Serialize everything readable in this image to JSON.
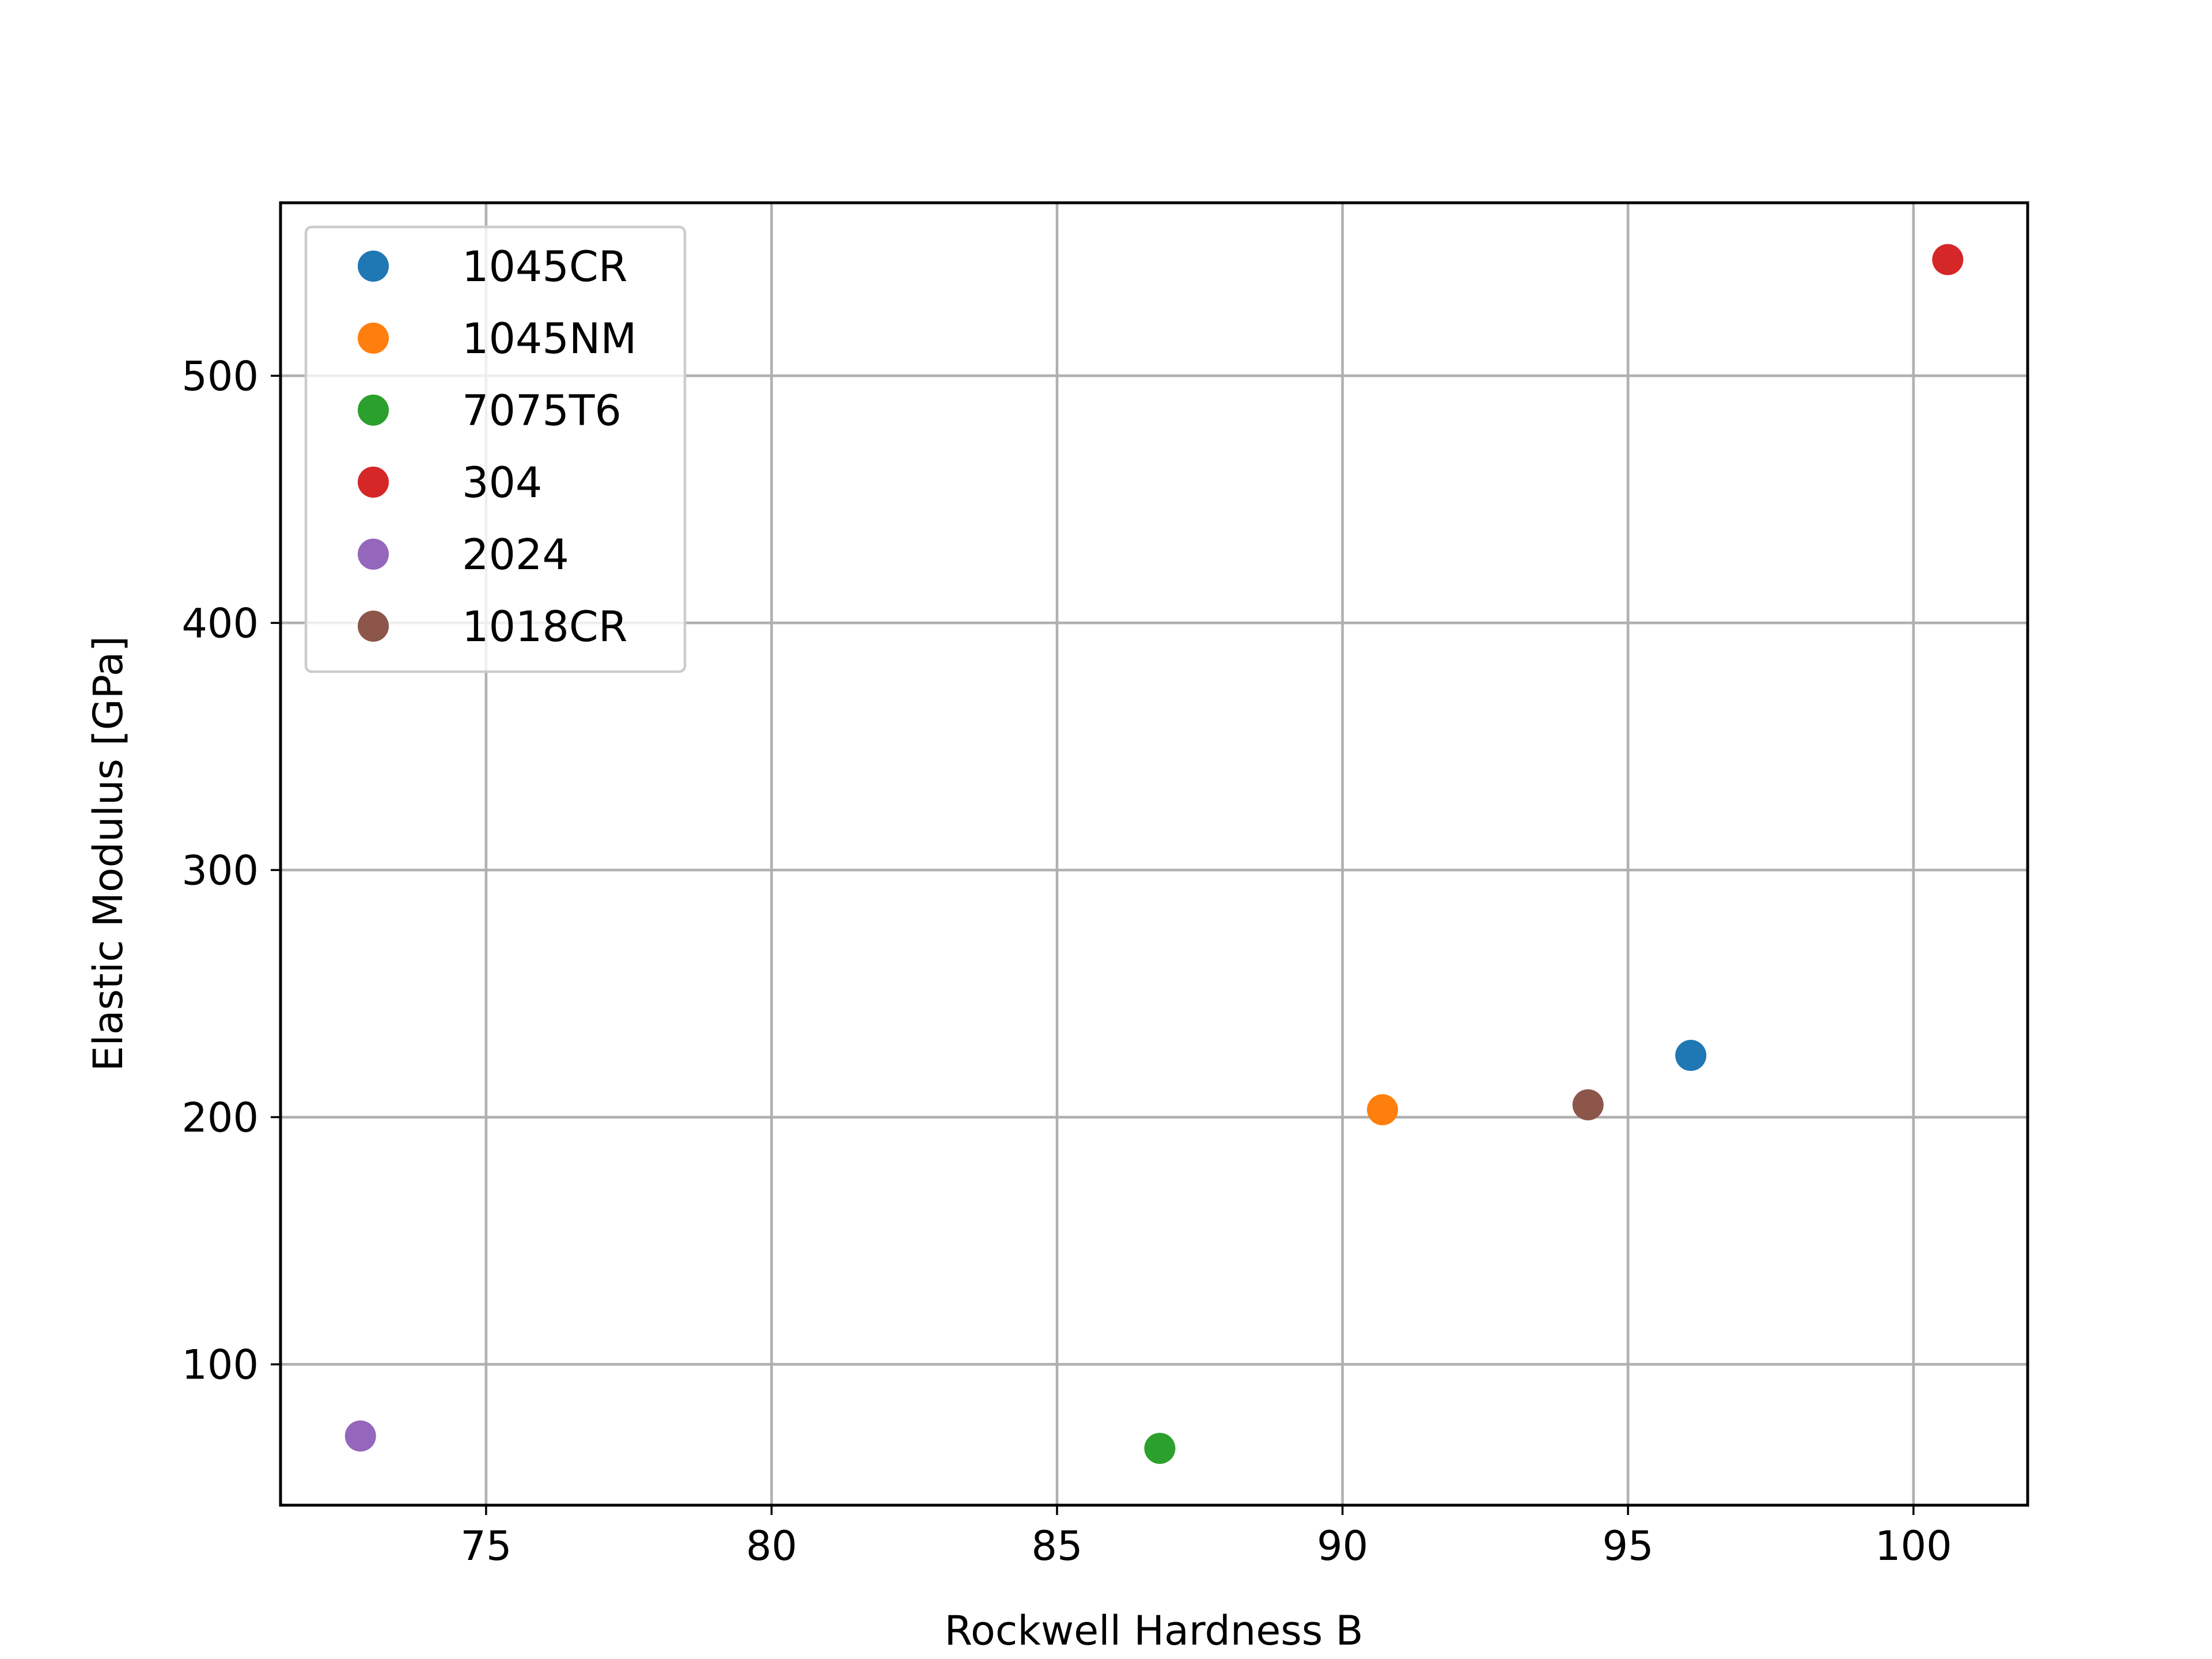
{
  "chart_data": {
    "type": "scatter",
    "xlabel": "Rockwell Hardness B",
    "ylabel": "Elastic Modulus [GPa]",
    "xlim": [
      71.4,
      102.0
    ],
    "ylim": [
      43,
      570
    ],
    "xticks": [
      75,
      80,
      85,
      90,
      95,
      100
    ],
    "yticks": [
      100,
      200,
      300,
      400,
      500
    ],
    "grid": true,
    "legend_position": "upper left",
    "series": [
      {
        "name": "1045CR",
        "color": "#1f77b4",
        "x": [
          96.1
        ],
        "y": [
          225
        ]
      },
      {
        "name": "1045NM",
        "color": "#ff7f0e",
        "x": [
          90.7
        ],
        "y": [
          203
        ]
      },
      {
        "name": "7075T6",
        "color": "#2ca02c",
        "x": [
          86.8
        ],
        "y": [
          66
        ]
      },
      {
        "name": "304",
        "color": "#d62728",
        "x": [
          100.6
        ],
        "y": [
          547
        ]
      },
      {
        "name": "2024",
        "color": "#9467bd",
        "x": [
          72.8
        ],
        "y": [
          71
        ]
      },
      {
        "name": "1018CR",
        "color": "#8c564b",
        "x": [
          94.3
        ],
        "y": [
          205
        ]
      }
    ]
  }
}
